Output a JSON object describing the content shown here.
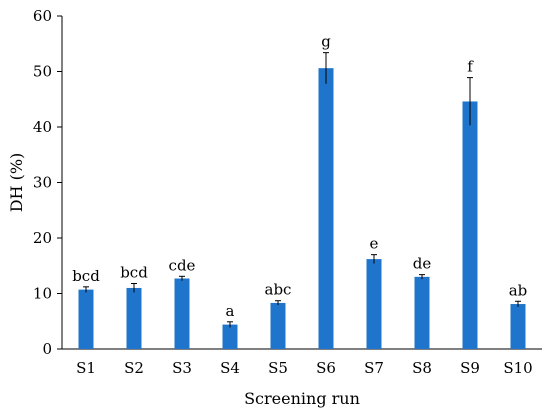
{
  "chart_data": {
    "type": "bar",
    "title": "",
    "xlabel": "Screening run",
    "ylabel": "DH (%)",
    "ylim": [
      0,
      60
    ],
    "yticks": [
      0,
      10,
      20,
      30,
      40,
      50,
      60
    ],
    "grid": false,
    "legend": "none",
    "bar_color": "#1f74cc",
    "categories": [
      "S1",
      "S2",
      "S3",
      "S4",
      "S5",
      "S6",
      "S7",
      "S8",
      "S9",
      "S10"
    ],
    "values": [
      10.7,
      11.0,
      12.7,
      4.4,
      8.3,
      50.6,
      16.2,
      13.0,
      44.6,
      8.1
    ],
    "errors": [
      0.5,
      0.8,
      0.4,
      0.5,
      0.4,
      2.8,
      0.8,
      0.4,
      4.3,
      0.5
    ],
    "labels": [
      "bcd",
      "bcd",
      "cde",
      "a",
      "abc",
      "g",
      "e",
      "de",
      "f",
      "ab"
    ]
  }
}
